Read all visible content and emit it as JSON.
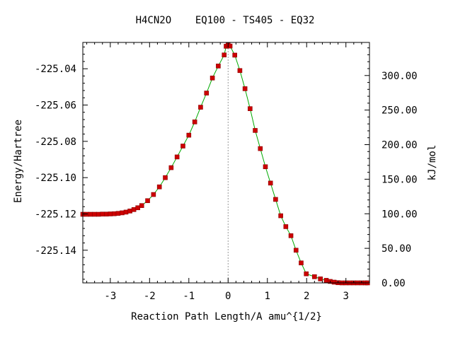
{
  "chart_data": {
    "type": "line",
    "title": "H4CN2O    EQ100 - TS405 - EQ32",
    "xlabel": "Reaction Path Length/A amu^{1/2}",
    "ylabel": "Energy/Hartree",
    "y2label": "kJ/mol",
    "xlim": [
      -3.7,
      3.6
    ],
    "ylim": [
      -225.158,
      -225.0255
    ],
    "y2lim": [
      0.0,
      347.86
    ],
    "x_ticks": [
      -3,
      -2,
      -1,
      0,
      1,
      2,
      3
    ],
    "x_tick_labels": [
      "-3",
      "-2",
      "-1",
      "0",
      "1",
      "2",
      "3"
    ],
    "y_ticks": [
      -225.04,
      -225.06,
      -225.08,
      -225.1,
      -225.12,
      -225.14
    ],
    "y_tick_labels": [
      "-225.04",
      "-225.06",
      "-225.08",
      "-225.10",
      "-225.12",
      "-225.14"
    ],
    "y2_ticks": [
      300,
      250,
      200,
      150,
      100,
      50,
      0
    ],
    "y2_tick_labels": [
      "300.00",
      "250.00",
      "200.00",
      "150.00",
      "100.00",
      "50.00",
      "0.00"
    ],
    "ts_marker_x": 0.0,
    "grid": false,
    "colors": {
      "line": "#00aa00",
      "marker": "#cc0000",
      "marker_edge": "#8b0000",
      "ts_line": "#999999"
    },
    "series": [
      {
        "x": [
          -3.7,
          -3.6,
          -3.5,
          -3.4,
          -3.3,
          -3.2,
          -3.1,
          -3.0,
          -2.9,
          -2.8,
          -2.7,
          -2.6,
          -2.5,
          -2.4,
          -2.3,
          -2.2,
          -2.05,
          -1.9,
          -1.75,
          -1.6,
          -1.45,
          -1.3,
          -1.15,
          -1.0,
          -0.85,
          -0.7,
          -0.55,
          -0.4,
          -0.25,
          -0.1,
          -0.05,
          0.0,
          0.05,
          0.17,
          0.3,
          0.43,
          0.56,
          0.69,
          0.82,
          0.95,
          1.08,
          1.21,
          1.34,
          1.47,
          1.6,
          1.73,
          1.86,
          1.99,
          2.2,
          2.35,
          2.5,
          2.6,
          2.7,
          2.8,
          2.9,
          3.0,
          3.1,
          3.2,
          3.3,
          3.4,
          3.5,
          3.55
        ],
        "y": [
          -225.1202,
          -225.1202,
          -225.1202,
          -225.1202,
          -225.1202,
          -225.1201,
          -225.1201,
          -225.12,
          -225.1199,
          -225.1197,
          -225.1194,
          -225.119,
          -225.1184,
          -225.1176,
          -225.1166,
          -225.1154,
          -225.1127,
          -225.1093,
          -225.1051,
          -225.1,
          -225.0945,
          -225.0886,
          -225.0826,
          -225.0766,
          -225.0693,
          -225.0612,
          -225.0534,
          -225.0451,
          -225.0385,
          -225.0324,
          -225.0276,
          -225.027,
          -225.0275,
          -225.0325,
          -225.041,
          -225.051,
          -225.062,
          -225.074,
          -225.084,
          -225.094,
          -225.103,
          -225.112,
          -225.121,
          -225.127,
          -225.132,
          -225.14,
          -225.147,
          -225.153,
          -225.1546,
          -225.1558,
          -225.1566,
          -225.1572,
          -225.1576,
          -225.1579,
          -225.158,
          -225.158,
          -225.158,
          -225.158,
          -225.158,
          -225.158,
          -225.158,
          -225.158
        ]
      }
    ]
  }
}
